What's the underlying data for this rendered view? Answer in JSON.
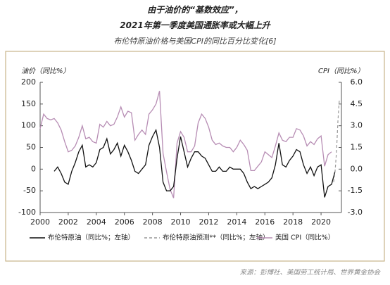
{
  "chart_data": {
    "type": "line",
    "title": "由于油价的“基数效应”，",
    "subtitle": "2021年第一季度美国通胀率或大幅上升",
    "chart_title": "布伦特原油价格与美国CPI的同比百分比变化[6]",
    "y_label": "油价（同比%）",
    "y2_label": "CPI（同比%）",
    "source": "来源：彭博社、美国劳工统计局、世界黄金协会",
    "xlim": [
      2000,
      2021.45
    ],
    "xticks": [
      2000,
      2002,
      2004,
      2006,
      2008,
      2010,
      2012,
      2014,
      2016,
      2018,
      2020
    ],
    "ylim": [
      -100,
      200
    ],
    "yticks": [
      -100,
      -50,
      0,
      50,
      100,
      150,
      200
    ],
    "y2lim": [
      -3,
      6
    ],
    "y2ticks": [
      {
        "value": -3,
        "label": "-3.0"
      },
      {
        "value": -1.5,
        "label": "-1.5"
      },
      {
        "value": 0,
        "label": "0.0"
      },
      {
        "value": 1.5,
        "label": "1.5"
      },
      {
        "value": 3,
        "label": "3.0"
      },
      {
        "value": 4.5,
        "label": "4.5"
      },
      {
        "value": 6,
        "label": "6.0"
      }
    ],
    "series": [
      {
        "name": "布伦特原油（同比%；左轴）",
        "color": "#111111",
        "dash": false,
        "axis": "y",
        "x": [
          2001,
          2001.25,
          2001.5,
          2001.75,
          2002,
          2002.25,
          2002.5,
          2002.75,
          2003,
          2003.25,
          2003.5,
          2003.75,
          2004,
          2004.25,
          2004.5,
          2004.75,
          2005,
          2005.25,
          2005.5,
          2005.75,
          2006,
          2006.25,
          2006.5,
          2006.75,
          2007,
          2007.25,
          2007.5,
          2007.75,
          2008,
          2008.25,
          2008.5,
          2008.75,
          2009,
          2009.25,
          2009.5,
          2009.75,
          2010,
          2010.25,
          2010.5,
          2010.75,
          2011,
          2011.25,
          2011.5,
          2011.75,
          2012,
          2012.25,
          2012.5,
          2012.75,
          2013,
          2013.25,
          2013.5,
          2013.75,
          2014,
          2014.25,
          2014.5,
          2014.75,
          2015,
          2015.25,
          2015.5,
          2015.75,
          2016,
          2016.25,
          2016.5,
          2016.75,
          2017,
          2017.25,
          2017.5,
          2017.75,
          2018,
          2018.25,
          2018.5,
          2018.75,
          2019,
          2019.25,
          2019.5,
          2019.75,
          2020,
          2020.25,
          2020.5,
          2020.75,
          2021
        ],
        "values": [
          -5,
          5,
          -10,
          -30,
          -35,
          -5,
          15,
          40,
          55,
          5,
          10,
          5,
          15,
          45,
          50,
          70,
          35,
          45,
          60,
          30,
          55,
          40,
          20,
          -5,
          -10,
          0,
          10,
          55,
          75,
          90,
          50,
          -30,
          -50,
          -50,
          -40,
          25,
          75,
          40,
          5,
          25,
          40,
          40,
          30,
          25,
          10,
          -5,
          -5,
          5,
          -5,
          -5,
          5,
          0,
          0,
          0,
          -10,
          -30,
          -45,
          -40,
          -45,
          -40,
          -35,
          -30,
          -20,
          10,
          60,
          10,
          5,
          20,
          30,
          45,
          40,
          10,
          -10,
          5,
          -15,
          5,
          10,
          -65,
          -40,
          -35,
          -5
        ]
      },
      {
        "name": "布伦特原油预测**（同比%；左轴）",
        "color": "#999999",
        "dash": true,
        "axis": "y",
        "x": [
          2020.9,
          2021,
          2021.1,
          2021.2,
          2021.3
        ],
        "values": [
          -30,
          -5,
          40,
          110,
          160
        ]
      },
      {
        "name": "美国 CPI（同比%）",
        "color": "#b78db4",
        "dash": false,
        "axis": "y2",
        "x": [
          2000,
          2000.25,
          2000.5,
          2000.75,
          2001,
          2001.25,
          2001.5,
          2001.75,
          2002,
          2002.25,
          2002.5,
          2002.75,
          2003,
          2003.25,
          2003.5,
          2003.75,
          2004,
          2004.25,
          2004.5,
          2004.75,
          2005,
          2005.25,
          2005.5,
          2005.75,
          2006,
          2006.25,
          2006.5,
          2006.75,
          2007,
          2007.25,
          2007.5,
          2007.75,
          2008,
          2008.25,
          2008.5,
          2008.75,
          2009,
          2009.25,
          2009.5,
          2009.75,
          2010,
          2010.25,
          2010.5,
          2010.75,
          2011,
          2011.25,
          2011.5,
          2011.75,
          2012,
          2012.25,
          2012.5,
          2012.75,
          2013,
          2013.25,
          2013.5,
          2013.75,
          2014,
          2014.25,
          2014.5,
          2014.75,
          2015,
          2015.25,
          2015.5,
          2015.75,
          2016,
          2016.25,
          2016.5,
          2016.75,
          2017,
          2017.25,
          2017.5,
          2017.75,
          2018,
          2018.25,
          2018.5,
          2018.75,
          2019,
          2019.25,
          2019.5,
          2019.75,
          2020,
          2020.25,
          2020.5,
          2020.75
        ],
        "values": [
          2.8,
          3.8,
          3.5,
          3.4,
          3.5,
          3.2,
          2.7,
          1.9,
          1.2,
          1.3,
          1.6,
          2.2,
          3.0,
          2.1,
          2.2,
          1.9,
          1.8,
          3.1,
          2.9,
          3.3,
          3.0,
          3.1,
          3.6,
          4.3,
          3.6,
          4.0,
          3.9,
          2.0,
          2.4,
          2.7,
          2.4,
          3.8,
          4.1,
          4.5,
          5.4,
          1.1,
          -0.2,
          -1.4,
          -2.0,
          1.8,
          2.6,
          2.2,
          1.2,
          1.2,
          1.6,
          3.2,
          3.8,
          3.5,
          2.9,
          2.0,
          1.7,
          1.8,
          1.6,
          1.5,
          1.5,
          1.2,
          1.5,
          2.0,
          1.7,
          1.3,
          -0.1,
          -0.1,
          0.2,
          0.5,
          1.2,
          1.0,
          0.8,
          1.6,
          2.5,
          2.0,
          1.9,
          2.2,
          2.2,
          2.8,
          2.7,
          2.3,
          1.6,
          1.9,
          1.7,
          2.1,
          2.3,
          0.2,
          1.0,
          1.2
        ]
      }
    ]
  }
}
